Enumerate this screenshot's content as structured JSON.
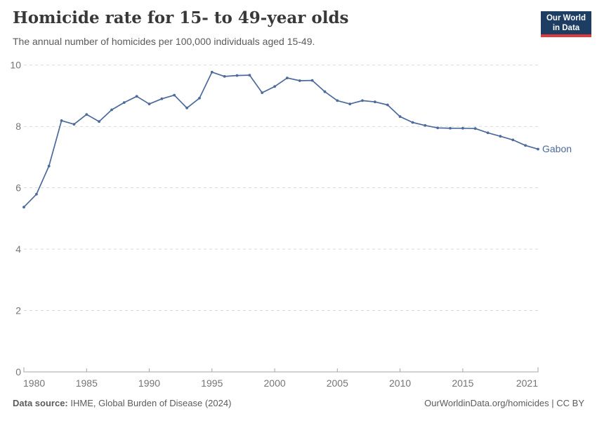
{
  "header": {
    "title": "Homicide rate for 15- to 49-year olds",
    "subtitle": "The annual number of homicides per 100,000 individuals aged 15-49.",
    "logo": {
      "line1": "Our World",
      "line2": "in Data"
    }
  },
  "colors": {
    "brand_navy": "#1d3d63",
    "brand_red": "#e0393e",
    "line_blue": "#4C6A9C"
  },
  "chart_data": {
    "type": "line",
    "title": "Homicide rate for 15- to 49-year olds",
    "subtitle": "The annual number of homicides per 100,000 individuals aged 15-49.",
    "x": [
      1980,
      1981,
      1982,
      1983,
      1984,
      1985,
      1986,
      1987,
      1988,
      1989,
      1990,
      1991,
      1992,
      1993,
      1994,
      1995,
      1996,
      1997,
      1998,
      1999,
      2000,
      2001,
      2002,
      2003,
      2004,
      2005,
      2006,
      2007,
      2008,
      2009,
      2010,
      2011,
      2012,
      2013,
      2014,
      2015,
      2016,
      2017,
      2018,
      2019,
      2020,
      2021
    ],
    "series": [
      {
        "name": "Gabon",
        "color": "#4C6A9C",
        "values": [
          5.37,
          5.79,
          6.71,
          8.19,
          8.07,
          8.39,
          8.16,
          8.54,
          8.78,
          8.98,
          8.73,
          8.9,
          9.02,
          8.6,
          8.92,
          9.77,
          9.63,
          9.66,
          9.67,
          9.1,
          9.3,
          9.58,
          9.49,
          9.5,
          9.13,
          8.84,
          8.73,
          8.84,
          8.8,
          8.7,
          8.32,
          8.13,
          8.03,
          7.95,
          7.94,
          7.94,
          7.93,
          7.79,
          7.68,
          7.56,
          7.38,
          7.26
        ]
      }
    ],
    "xlabel": "",
    "ylabel": "",
    "ylim": [
      0,
      10
    ],
    "xlim": [
      1980,
      2021
    ],
    "yticks": [
      0,
      2,
      4,
      6,
      8,
      10
    ],
    "xticks": [
      1980,
      1985,
      1990,
      1995,
      2000,
      2005,
      2010,
      2015,
      2021
    ],
    "grid": "horizontal-dashed",
    "legend": "end-of-line-label",
    "colors": {
      "grid": "#d9d9d9",
      "axis": "#a5a5a5",
      "tick_label": "#757575"
    }
  },
  "footer": {
    "source_label": "Data source:",
    "source_text": "IHME, Global Burden of Disease (2024)",
    "credit": "OurWorldinData.org/homicides | CC BY"
  }
}
